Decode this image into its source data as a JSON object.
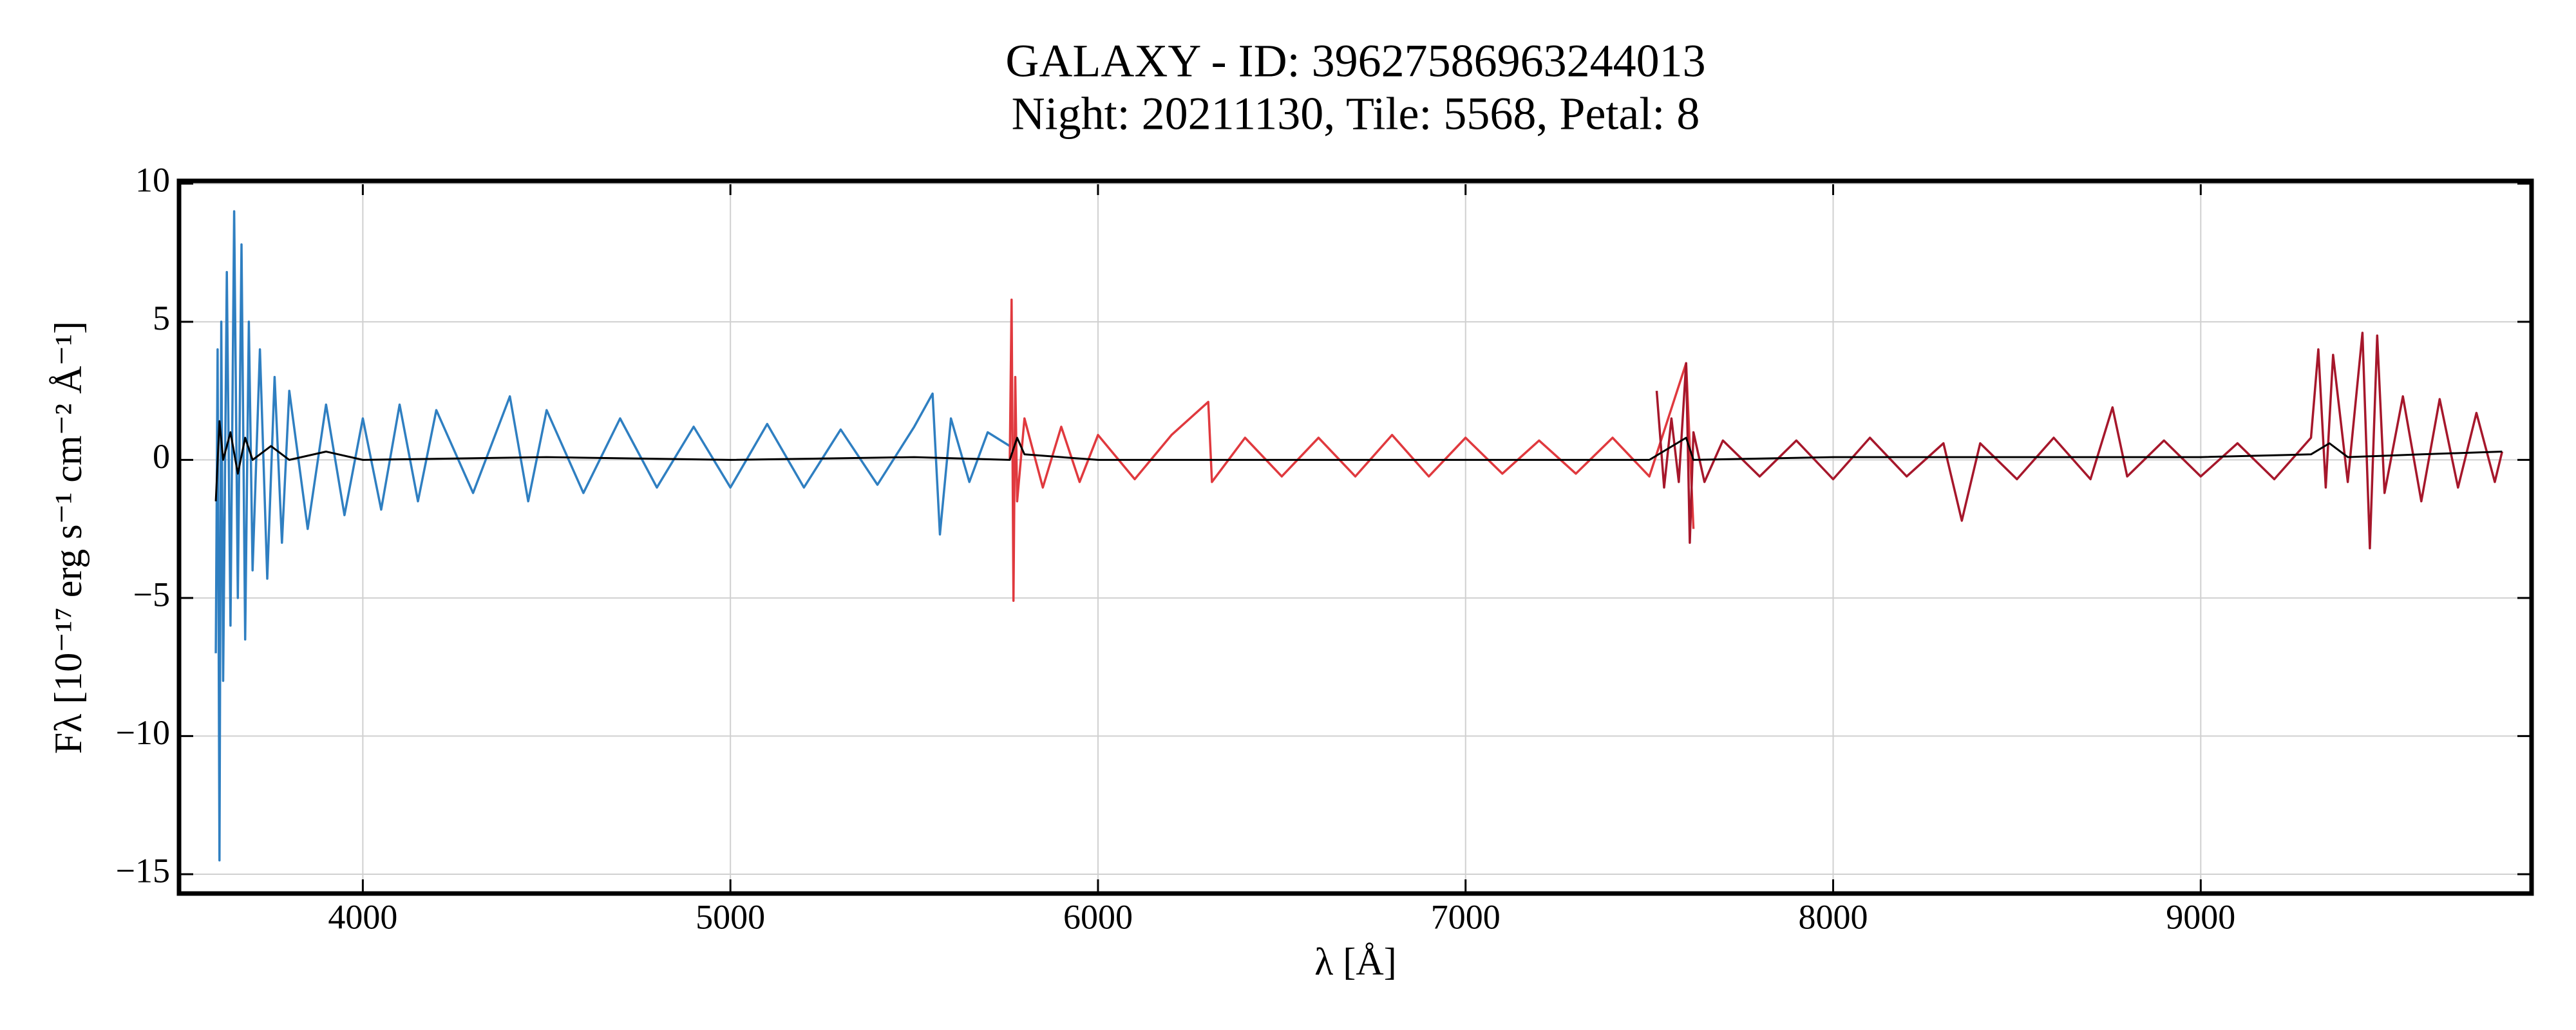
{
  "chart_data": {
    "type": "line",
    "title": "GALAXY - ID: 39627586963244013",
    "subtitle": "Night: 20211130, Tile: 5568, Petal: 8",
    "x_label": "λ [Å]",
    "y_label": "Fλ [10⁻¹⁷ erg s⁻¹ cm⁻² Å⁻¹]",
    "xlim": [
      3500,
      9900
    ],
    "ylim": [
      -15.7,
      10.1
    ],
    "xticks": [
      4000,
      5000,
      6000,
      7000,
      8000,
      9000
    ],
    "yticks": [
      {
        "value": -15,
        "label": "−15"
      },
      {
        "value": -10,
        "label": "−10"
      },
      {
        "value": -5,
        "label": "−5"
      },
      0,
      5,
      10
    ],
    "grid": true,
    "series": [
      {
        "color": "#2f7fc1",
        "x": [
          3600,
          3605,
          3610,
          3615,
          3620,
          3630,
          3640,
          3650,
          3660,
          3670,
          3680,
          3690,
          3700,
          3720,
          3740,
          3760,
          3780,
          3800,
          3850,
          3900,
          3950,
          4000,
          4050,
          4100,
          4150,
          4200,
          4300,
          4400,
          4450,
          4500,
          4600,
          4700,
          4800,
          4900,
          5000,
          5100,
          5200,
          5300,
          5400,
          5500,
          5550,
          5570,
          5600,
          5650,
          5700,
          5760
        ],
        "values": [
          -7,
          4,
          -14.5,
          5,
          -8,
          6.8,
          -6,
          9,
          -5,
          7.8,
          -6.5,
          5,
          -4,
          4,
          -4.3,
          3,
          -3,
          2.5,
          -2.5,
          2,
          -2,
          1.5,
          -1.8,
          2,
          -1.5,
          1.8,
          -1.2,
          2.3,
          -1.5,
          1.8,
          -1.2,
          1.5,
          -1,
          1.2,
          -1,
          1.3,
          -1,
          1.1,
          -0.9,
          1.2,
          2.4,
          -2.7,
          1.5,
          -0.8,
          1,
          0.5
        ]
      },
      {
        "color": "#e0393e",
        "x": [
          5760,
          5765,
          5770,
          5775,
          5780,
          5800,
          5850,
          5900,
          5950,
          6000,
          6100,
          6200,
          6300,
          6310,
          6400,
          6500,
          6600,
          6700,
          6800,
          6900,
          7000,
          7100,
          7200,
          7300,
          7400,
          7500,
          7600,
          7620
        ],
        "values": [
          0,
          5.8,
          -5.1,
          3,
          -1.5,
          1.5,
          -1,
          1.2,
          -0.8,
          0.9,
          -0.7,
          0.9,
          2.1,
          -0.8,
          0.8,
          -0.6,
          0.8,
          -0.6,
          0.9,
          -0.6,
          0.8,
          -0.5,
          0.7,
          -0.5,
          0.8,
          -0.6,
          3.5,
          -2.5
        ]
      },
      {
        "color": "#a6172b",
        "x": [
          7520,
          7540,
          7560,
          7580,
          7600,
          7610,
          7620,
          7650,
          7700,
          7800,
          7900,
          8000,
          8100,
          8200,
          8300,
          8350,
          8400,
          8500,
          8600,
          8700,
          8760,
          8800,
          8900,
          9000,
          9100,
          9200,
          9300,
          9320,
          9340,
          9360,
          9400,
          9440,
          9460,
          9480,
          9500,
          9550,
          9600,
          9650,
          9700,
          9750,
          9800,
          9820
        ],
        "values": [
          2.5,
          -1,
          1.5,
          -0.8,
          3.5,
          -3,
          1,
          -0.8,
          0.7,
          -0.6,
          0.7,
          -0.7,
          0.8,
          -0.6,
          0.6,
          -2.2,
          0.6,
          -0.7,
          0.8,
          -0.7,
          1.9,
          -0.6,
          0.7,
          -0.6,
          0.6,
          -0.7,
          0.8,
          4,
          -1,
          3.8,
          -0.8,
          4.6,
          -3.2,
          4.5,
          -1.2,
          2.3,
          -1.5,
          2.2,
          -1,
          1.7,
          -0.8,
          0.3
        ]
      },
      {
        "color": "#000000",
        "x": [
          3600,
          3610,
          3620,
          3640,
          3660,
          3680,
          3700,
          3750,
          3800,
          3900,
          4000,
          4500,
          5000,
          5500,
          5760,
          5780,
          5800,
          6000,
          7000,
          7500,
          7600,
          7620,
          8000,
          9000,
          9300,
          9350,
          9400,
          9600,
          9820
        ],
        "values": [
          -1.5,
          1.4,
          0,
          1,
          -0.5,
          0.8,
          0,
          0.5,
          0,
          0.3,
          0,
          0.1,
          0,
          0.1,
          0,
          0.8,
          0.2,
          0,
          0,
          0,
          0.8,
          0,
          0.1,
          0.1,
          0.2,
          0.6,
          0.1,
          0.2,
          0.3
        ]
      }
    ]
  }
}
